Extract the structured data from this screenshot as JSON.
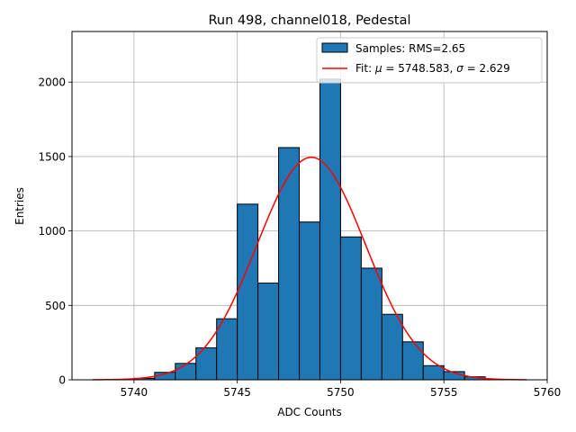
{
  "chart_data": {
    "type": "bar",
    "title": "Run 498, channel018, Pedestal",
    "xlabel": "ADC Counts",
    "ylabel": "Entries",
    "xlim": [
      5737,
      5760
    ],
    "ylim": [
      0,
      2340
    ],
    "xticks": [
      5740,
      5745,
      5750,
      5755,
      5760
    ],
    "yticks": [
      0,
      500,
      1000,
      1500,
      2000
    ],
    "grid": true,
    "legend_position": "top-right",
    "bin_width": 1,
    "bins": [
      {
        "x0": 5740,
        "value": 10
      },
      {
        "x0": 5741,
        "value": 50
      },
      {
        "x0": 5742,
        "value": 110
      },
      {
        "x0": 5743,
        "value": 215
      },
      {
        "x0": 5744,
        "value": 410
      },
      {
        "x0": 5745,
        "value": 1180
      },
      {
        "x0": 5746,
        "value": 650
      },
      {
        "x0": 5747,
        "value": 1560
      },
      {
        "x0": 5748,
        "value": 1060
      },
      {
        "x0": 5749,
        "value": 2020
      },
      {
        "x0": 5750,
        "value": 960
      },
      {
        "x0": 5751,
        "value": 750
      },
      {
        "x0": 5752,
        "value": 440
      },
      {
        "x0": 5753,
        "value": 255
      },
      {
        "x0": 5754,
        "value": 95
      },
      {
        "x0": 5755,
        "value": 55
      },
      {
        "x0": 5756,
        "value": 20
      }
    ],
    "fit": {
      "mu": 5748.583,
      "sigma": 2.629,
      "peak": 1495,
      "x_range": [
        5738,
        5759
      ]
    },
    "legend": {
      "hist_label": "Samples: RMS=2.65",
      "fit_label_prefix": "Fit: ",
      "fit_mu_symbol": "μ",
      "fit_mu_value": " = 5748.583, ",
      "fit_sigma_symbol": "σ",
      "fit_sigma_value": " = 2.629"
    },
    "colors": {
      "bar_fill": "#1f77b4",
      "bar_edge": "#000000",
      "fit_line": "#ff0000",
      "grid": "#b0b0b0"
    }
  }
}
